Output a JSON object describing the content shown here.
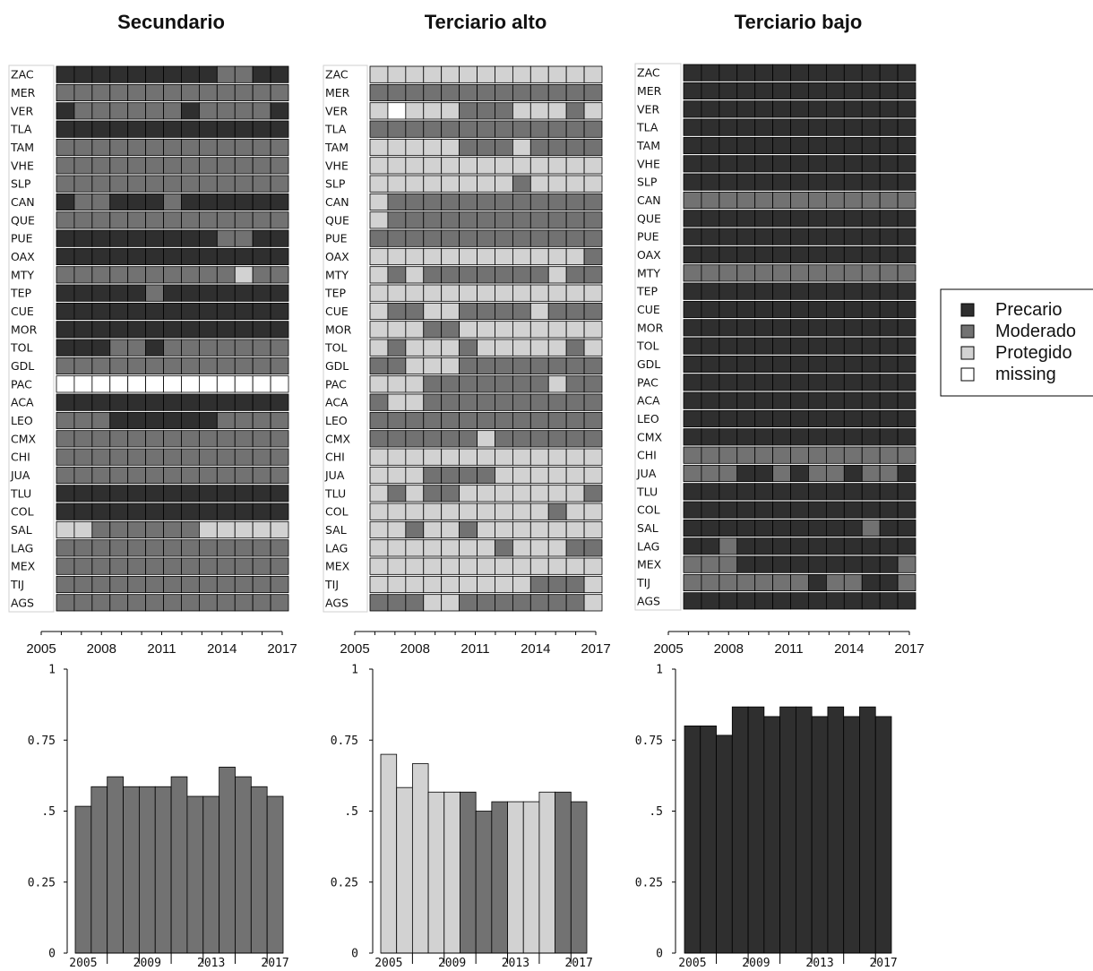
{
  "colors": {
    "Precario": "#2f2f2f",
    "Moderado": "#727272",
    "Protegido": "#d2d2d2",
    "missing": "#ffffff"
  },
  "legend": {
    "placement": "right",
    "entries": [
      "Precario",
      "Moderado",
      "Protegido",
      "missing"
    ]
  },
  "chart_data": [
    {
      "type": "heatmap",
      "title": "Secundario",
      "years": [
        2005,
        2006,
        2007,
        2008,
        2009,
        2010,
        2011,
        2012,
        2013,
        2014,
        2015,
        2016,
        2017
      ],
      "year_ticks": [
        "2005",
        "2008",
        "2011",
        "2014",
        "2017"
      ],
      "rows": [
        "ZAC",
        "MER",
        "VER",
        "TLA",
        "TAM",
        "VHE",
        "SLP",
        "CAN",
        "QUE",
        "PUE",
        "OAX",
        "MTY",
        "TEP",
        "CUE",
        "MOR",
        "TOL",
        "GDL",
        "PAC",
        "ACA",
        "LEO",
        "CMX",
        "CHI",
        "JUA",
        "TLU",
        "COL",
        "SAL",
        "LAG",
        "MEX",
        "TIJ",
        "AGS"
      ],
      "codes": [
        "PPPPPPPPPMMPP",
        "MMMMMMMMMMMMM",
        "PMMMMMMPMMMMP",
        "PPPPPPPPPPPPP",
        "MMMMMMMMMMMMM",
        "MMMMMMMMMMMMM",
        "MMMMMMMMMMMMM",
        "PMMPPPMPPPPPP",
        "MMMMMMMMMMMMM",
        "PPPPPPPPPMMPP",
        "PPPPPPPPPPPPP",
        "MMMMMMMMMMLMM",
        "PPPPPMPPPPPPP",
        "PPPPPPPPPPPPP",
        "PPPPPPPPPPPPP",
        "PPPMMPMMMMMMM",
        "MMMMMMMMMMMMM",
        "XXXXXXXXXXXXX",
        "PPPPPPPPPPPPP",
        "MMMPPPPPPMMMM",
        "MMMMMMMMMMMMM",
        "MMMMMMMMMMMMM",
        "MMMMMMMMMMMMM",
        "PPPPPPPPPPPPP",
        "PPPPPPPPPPPPP",
        "LLMMMMMMLLLLL",
        "MMMMMMMMMMMMM",
        "MMMMMMMMMMMMM",
        "MMMMMMMMMMMMM",
        "MMMMMMMMMMMMM"
      ]
    },
    {
      "type": "heatmap",
      "title": "Terciario alto",
      "years": [
        2005,
        2006,
        2007,
        2008,
        2009,
        2010,
        2011,
        2012,
        2013,
        2014,
        2015,
        2016,
        2017
      ],
      "year_ticks": [
        "2005",
        "2008",
        "2011",
        "2014",
        "2017"
      ],
      "rows": [
        "ZAC",
        "MER",
        "VER",
        "TLA",
        "TAM",
        "VHE",
        "SLP",
        "CAN",
        "QUE",
        "PUE",
        "OAX",
        "MTY",
        "TEP",
        "CUE",
        "MOR",
        "TOL",
        "GDL",
        "PAC",
        "ACA",
        "LEO",
        "CMX",
        "CHI",
        "JUA",
        "TLU",
        "COL",
        "SAL",
        "LAG",
        "MEX",
        "TIJ",
        "AGS"
      ],
      "codes": [
        "LLLLLLLLLLLLL",
        "MMMMMMMMMMMMM",
        "LXLLLMMMLLLML",
        "MMMMMMMMMMMMM",
        "LLLLLMMMLMMMM",
        "LLLLLLLLLLLLL",
        "LLLLLLLLMLLLL",
        "LMMMMMMMMMMMM",
        "LMMMMMMMMMMMM",
        "MMMMMMMMMMMMM",
        "LLLLLLLLLLLLM",
        "LMLMMMMMMMLMM",
        "LLLLLLLLLLLLL",
        "LMMLLMMMMLMMM",
        "LLLMMLLLLLLLL",
        "LMLLLMLLLLLML",
        "MMLLLMMMMMMMM",
        "LLLMMMMMMMLMM",
        "MLLMMMMMMMMMM",
        "MMMMMMMMMMMMM",
        "MMMMMMLMMMMMM",
        "LLLLLLLLLLLLL",
        "LLLMMMMLLLLLL",
        "LMLMMLLLLLLLM",
        "LLLLLLLLLLMLL",
        "LLMLLMLLLLLLL",
        "LLLLLLLMLLLMM",
        "LLLLLLLLLLLLL",
        "LLLLLLLLLMMML",
        "MMMLLMMMMMMML"
      ]
    },
    {
      "type": "heatmap",
      "title": "Terciario bajo",
      "years": [
        2005,
        2006,
        2007,
        2008,
        2009,
        2010,
        2011,
        2012,
        2013,
        2014,
        2015,
        2016,
        2017
      ],
      "year_ticks": [
        "2005",
        "2008",
        "2011",
        "2014",
        "2017"
      ],
      "rows": [
        "ZAC",
        "MER",
        "VER",
        "TLA",
        "TAM",
        "VHE",
        "SLP",
        "CAN",
        "QUE",
        "PUE",
        "OAX",
        "MTY",
        "TEP",
        "CUE",
        "MOR",
        "TOL",
        "GDL",
        "PAC",
        "ACA",
        "LEO",
        "CMX",
        "CHI",
        "JUA",
        "TLU",
        "COL",
        "SAL",
        "LAG",
        "MEX",
        "TIJ",
        "AGS"
      ],
      "codes": [
        "PPPPPPPPPPPPP",
        "PPPPPPPPPPPPP",
        "PPPPPPPPPPPPP",
        "PPPPPPPPPPPPP",
        "PPPPPPPPPPPPP",
        "PPPPPPPPPPPPP",
        "PPPPPPPPPPPPP",
        "MMMMMMMMMMMMM",
        "PPPPPPPPPPPPP",
        "PPPPPPPPPPPPP",
        "PPPPPPPPPPPPP",
        "MMMMMMMMMMMMM",
        "PPPPPPPPPPPPP",
        "PPPPPPPPPPPPP",
        "PPPPPPPPPPPPP",
        "PPPPPPPPPPPPP",
        "PPPPPPPPPPPPP",
        "PPPPPPPPPPPPP",
        "PPPPPPPPPPPPP",
        "PPPPPPPPPPPPP",
        "PPPPPPPPPPPPP",
        "MMMMMMMMMMMMM",
        "MMMPPMPMMPMMP",
        "PPPPPPPPPPPPP",
        "PPPPPPPPPPPPP",
        "PPPPPPPPPPMPP",
        "PPMPPPPPPPPPP",
        "MMMPPPPPPPPPM",
        "MMMMMMMPMMPPM",
        "PPPPPPPPPPPPP"
      ]
    },
    {
      "type": "bar",
      "x": [
        2005,
        2006,
        2007,
        2008,
        2009,
        2010,
        2011,
        2012,
        2013,
        2014,
        2015,
        2016,
        2017
      ],
      "values": [
        0.517,
        0.586,
        0.621,
        0.586,
        0.586,
        0.586,
        0.621,
        0.552,
        0.552,
        0.655,
        0.621,
        0.586,
        0.552
      ],
      "colors": [
        "Moderado",
        "Moderado",
        "Moderado",
        "Moderado",
        "Moderado",
        "Moderado",
        "Moderado",
        "Moderado",
        "Moderado",
        "Moderado",
        "Moderado",
        "Moderado",
        "Moderado"
      ],
      "ylim": [
        0,
        1
      ],
      "yticks": [
        "0",
        "0.25",
        ".5",
        "0.75",
        "1"
      ],
      "xticks": [
        "2005",
        "2009",
        "2013",
        "2017"
      ]
    },
    {
      "type": "bar",
      "x": [
        2005,
        2006,
        2007,
        2008,
        2009,
        2010,
        2011,
        2012,
        2013,
        2014,
        2015,
        2016,
        2017
      ],
      "values": [
        0.7,
        0.583,
        0.667,
        0.567,
        0.567,
        0.567,
        0.5,
        0.533,
        0.533,
        0.533,
        0.567,
        0.567,
        0.533
      ],
      "colors": [
        "Protegido",
        "Protegido",
        "Protegido",
        "Protegido",
        "Protegido",
        "Moderado",
        "Moderado",
        "Moderado",
        "Protegido",
        "Protegido",
        "Protegido",
        "Moderado",
        "Moderado"
      ],
      "ylim": [
        0,
        1
      ],
      "yticks": [
        "0",
        "0.25",
        ".5",
        "0.75",
        "1"
      ],
      "xticks": [
        "2005",
        "2009",
        "2013",
        "2017"
      ]
    },
    {
      "type": "bar",
      "x": [
        2005,
        2006,
        2007,
        2008,
        2009,
        2010,
        2011,
        2012,
        2013,
        2014,
        2015,
        2016,
        2017
      ],
      "values": [
        0.8,
        0.8,
        0.767,
        0.867,
        0.867,
        0.833,
        0.867,
        0.867,
        0.833,
        0.867,
        0.833,
        0.867,
        0.833
      ],
      "colors": [
        "Precario",
        "Precario",
        "Precario",
        "Precario",
        "Precario",
        "Precario",
        "Precario",
        "Precario",
        "Precario",
        "Precario",
        "Precario",
        "Precario",
        "Precario"
      ],
      "ylim": [
        0,
        1
      ],
      "yticks": [
        "0",
        "0.25",
        ".5",
        "0.75",
        "1"
      ],
      "xticks": [
        "2005",
        "2009",
        "2013",
        "2017"
      ]
    }
  ]
}
